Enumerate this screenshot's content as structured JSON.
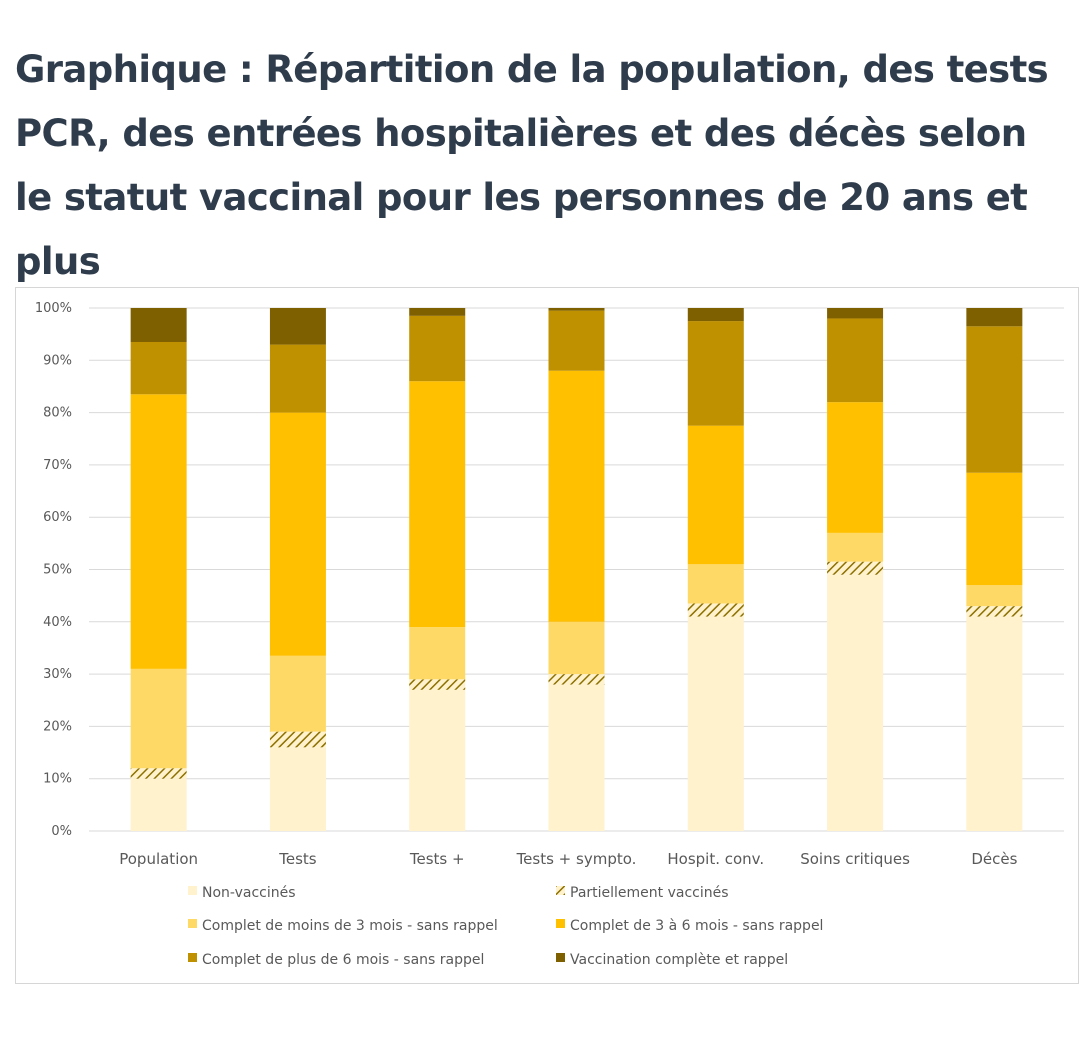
{
  "title": "Graphique : Répartition de la population, des tests PCR, des entrées hospitalières et des décès selon le statut vaccinal pour les personnes de 20 ans et plus",
  "chart_data": {
    "type": "bar",
    "stacked": true,
    "percent_stacked": true,
    "categories": [
      "Population",
      "Tests",
      "Tests +",
      "Tests + sympto.",
      "Hospit. conv.",
      "Soins critiques",
      "Décès"
    ],
    "y_ticks": [
      "0%",
      "10%",
      "20%",
      "30%",
      "40%",
      "50%",
      "60%",
      "70%",
      "80%",
      "90%",
      "100%"
    ],
    "ylim": [
      0,
      100
    ],
    "grid": true,
    "legend_position": "bottom",
    "series": [
      {
        "name": "Non-vaccinés",
        "color": "#fff2cc",
        "values": [
          10,
          16,
          27,
          28,
          41,
          49,
          41
        ]
      },
      {
        "name": "Partiellement vaccinés",
        "color": "#c8a400",
        "pattern": "hatch",
        "values": [
          2,
          3,
          2,
          2,
          2.5,
          2.5,
          2
        ]
      },
      {
        "name": "Complet de moins de 3 mois - sans rappel",
        "color": "#ffd966",
        "values": [
          19,
          14.5,
          10,
          10,
          7.5,
          5.5,
          4
        ]
      },
      {
        "name": "Complet de 3 à 6 mois - sans rappel",
        "color": "#ffc000",
        "values": [
          52.5,
          46.5,
          47,
          48,
          26.5,
          25,
          21.5
        ]
      },
      {
        "name": "Complet de plus de 6 mois - sans rappel",
        "color": "#bf9000",
        "values": [
          10,
          13,
          12.5,
          11.5,
          20,
          16,
          28
        ]
      },
      {
        "name": "Vaccination complète et rappel",
        "color": "#7f6000",
        "values": [
          6.5,
          7,
          1.5,
          0.5,
          2.5,
          2,
          3.5
        ]
      }
    ]
  }
}
